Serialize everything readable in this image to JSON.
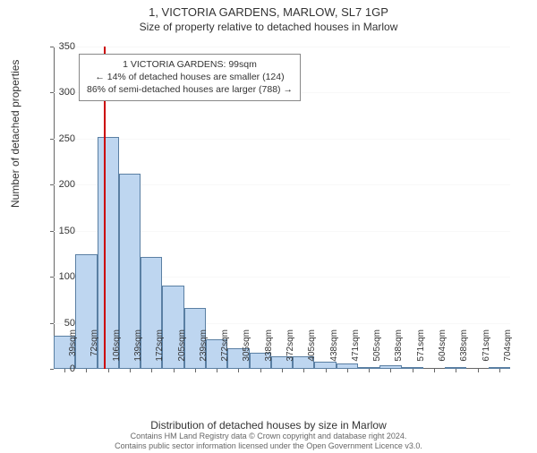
{
  "header": {
    "title": "1, VICTORIA GARDENS, MARLOW, SL7 1GP",
    "subtitle": "Size of property relative to detached houses in Marlow"
  },
  "chart": {
    "type": "histogram",
    "y_axis_title": "Number of detached properties",
    "x_axis_title": "Distribution of detached houses by size in Marlow",
    "ylim": [
      0,
      350
    ],
    "ytick_step": 50,
    "yticks": [
      0,
      50,
      100,
      150,
      200,
      250,
      300,
      350
    ],
    "bar_color": "#bed6f0",
    "bar_border_color": "#5a7fa3",
    "background_color": "#ffffff",
    "gridline_color": "#f8f8f8",
    "axis_color": "#666666",
    "marker_color": "#cc0000",
    "marker_value": 99,
    "bins": [
      {
        "label": "39sqm",
        "value": 36
      },
      {
        "label": "72sqm",
        "value": 124
      },
      {
        "label": "106sqm",
        "value": 252
      },
      {
        "label": "139sqm",
        "value": 212
      },
      {
        "label": "172sqm",
        "value": 122
      },
      {
        "label": "205sqm",
        "value": 90
      },
      {
        "label": "239sqm",
        "value": 66
      },
      {
        "label": "272sqm",
        "value": 32
      },
      {
        "label": "305sqm",
        "value": 22
      },
      {
        "label": "338sqm",
        "value": 18
      },
      {
        "label": "372sqm",
        "value": 14
      },
      {
        "label": "405sqm",
        "value": 14
      },
      {
        "label": "438sqm",
        "value": 8
      },
      {
        "label": "471sqm",
        "value": 6
      },
      {
        "label": "505sqm",
        "value": 2
      },
      {
        "label": "538sqm",
        "value": 4
      },
      {
        "label": "571sqm",
        "value": 2
      },
      {
        "label": "604sqm",
        "value": 0
      },
      {
        "label": "638sqm",
        "value": 2
      },
      {
        "label": "671sqm",
        "value": 0
      },
      {
        "label": "704sqm",
        "value": 2
      }
    ],
    "annotation": {
      "line1": "1 VICTORIA GARDENS: 99sqm",
      "line2": "← 14% of detached houses are smaller (124)",
      "line3": "86% of semi-detached houses are larger (788) →"
    }
  },
  "footer": {
    "line1": "Contains HM Land Registry data © Crown copyright and database right 2024.",
    "line2": "Contains public sector information licensed under the Open Government Licence v3.0."
  }
}
